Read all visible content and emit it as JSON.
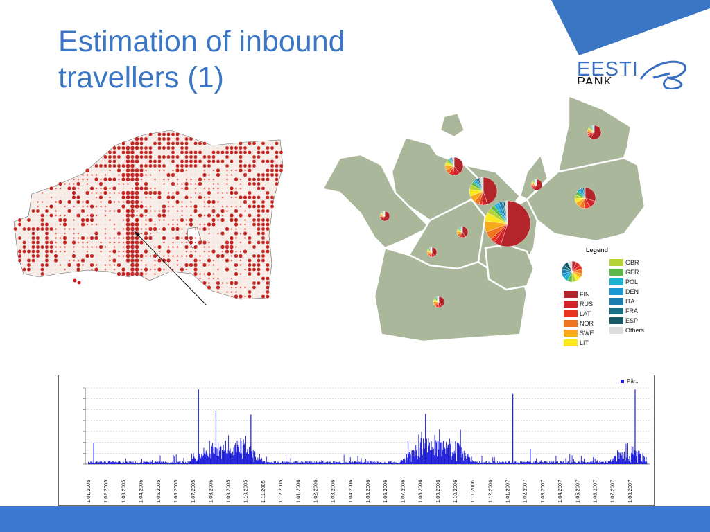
{
  "slide": {
    "title_line1": "Estimation of inbound",
    "title_line2": "travellers (1)",
    "logo_word1": "EESTI",
    "logo_word2": "PANK"
  },
  "colors": {
    "title": "#3a76c4",
    "accent_blue": "#3a78d2",
    "map_fill": "#aab79a",
    "dot_red": "#c8221e",
    "bar_blue": "#1a1adb"
  },
  "map_legend": {
    "title": "Legend",
    "left_items": [
      {
        "label": "FIN",
        "color": "#b3252a"
      },
      {
        "label": "RUS",
        "color": "#d2232a"
      },
      {
        "label": "LAT",
        "color": "#e8341f"
      },
      {
        "label": "NOR",
        "color": "#f07523"
      },
      {
        "label": "SWE",
        "color": "#f7a81b"
      },
      {
        "label": "LIT",
        "color": "#f8e81c"
      }
    ],
    "right_items": [
      {
        "label": "GBR",
        "color": "#b5d334"
      },
      {
        "label": "GER",
        "color": "#5db84a"
      },
      {
        "label": "POL",
        "color": "#19b3d0"
      },
      {
        "label": "DEN",
        "color": "#1b98d4"
      },
      {
        "label": "ITA",
        "color": "#1a7fb0"
      },
      {
        "label": "FRA",
        "color": "#196f82"
      },
      {
        "label": "ESP",
        "color": "#155a66"
      },
      {
        "label": "Others",
        "color": "#dddddd"
      }
    ]
  },
  "chart_data": {
    "type": "bar",
    "legend": "Pär..",
    "x_tick_labels": [
      "1.01.2005",
      "1.02.2005",
      "1.03.2005",
      "1.04.2005",
      "1.05.2005",
      "1.06.2005",
      "1.07.2005",
      "1.08.2005",
      "1.09.2005",
      "1.10.2005",
      "1.11.2005",
      "1.12.2005",
      "1.01.2006",
      "1.02.2006",
      "1.03.2006",
      "1.04.2006",
      "1.05.2006",
      "1.06.2006",
      "1.07.2006",
      "1.08.2006",
      "1.09.2006",
      "1.10.2006",
      "1.11.2006",
      "1.12.2006",
      "1.01.2007",
      "1.02.2007",
      "1.03.2007",
      "1.04.2007",
      "1.05.2007",
      "1.06.2007",
      "1.07.2007",
      "1.08.2007"
    ],
    "grid": true,
    "series_color": "#1a1adb",
    "note_values": "daily bar heights estimated as fraction of plot height (0-1)",
    "peaks": [
      {
        "date": "1.01.2005",
        "value": 0.28
      },
      {
        "date": "1.07.2005",
        "value": 0.98
      },
      {
        "date": "1.08.2005",
        "value": 0.7
      },
      {
        "date": "1.10.2005",
        "value": 0.65
      },
      {
        "date": "1.07.2006",
        "value": 0.3
      },
      {
        "date": "1.08.2006",
        "value": 0.66
      },
      {
        "date": "1.10.2006",
        "value": 0.45
      },
      {
        "date": "1.01.2007",
        "value": 0.92
      },
      {
        "date": "1.02.2007",
        "value": 0.2
      },
      {
        "date": "1.08.2007",
        "value": 0.98
      }
    ]
  }
}
